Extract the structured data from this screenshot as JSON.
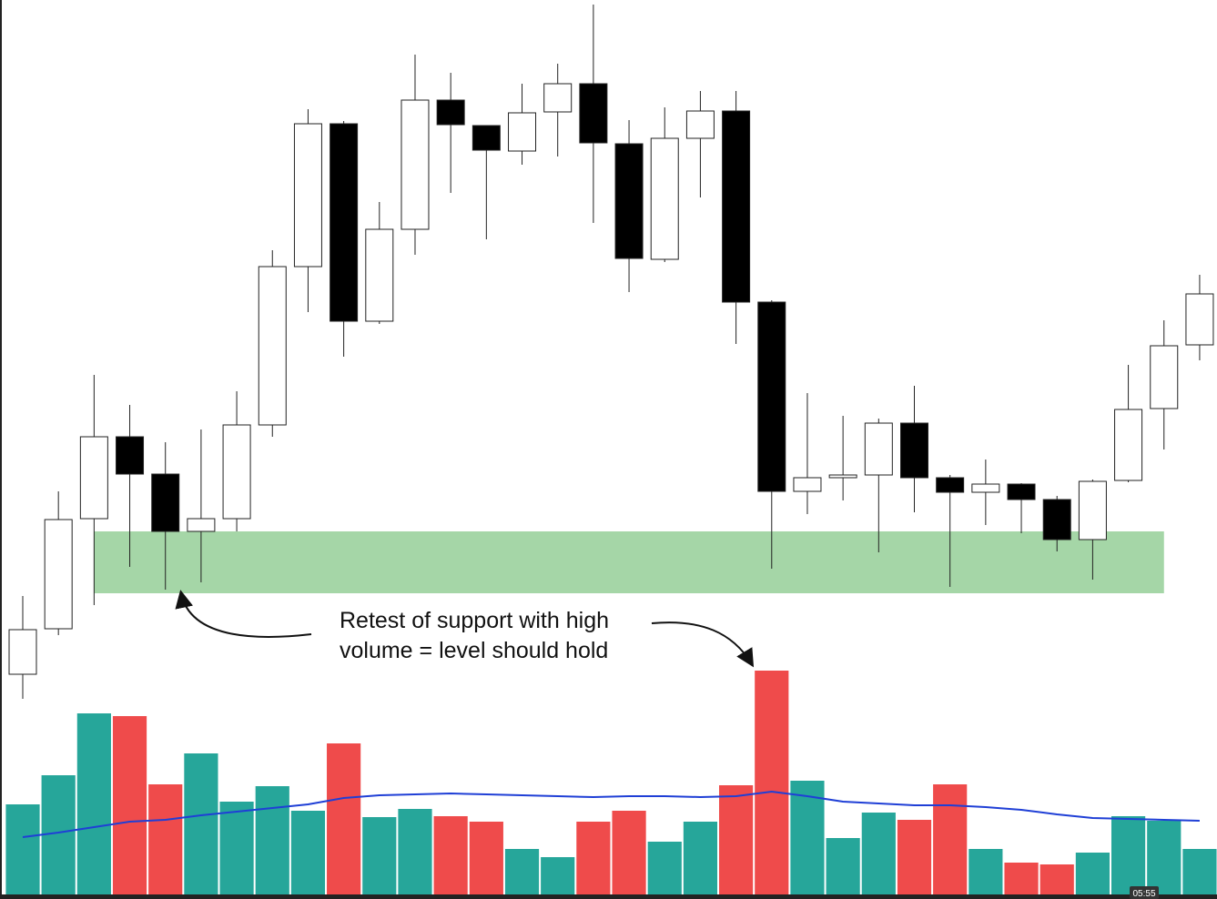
{
  "chart_data": {
    "type": "candlestick",
    "candles": {
      "open": [
        247,
        297,
        418,
        508,
        467,
        404,
        418,
        521,
        695,
        852,
        635,
        736,
        878,
        850,
        822,
        865,
        896,
        830,
        703,
        836,
        866,
        656,
        448,
        463,
        466,
        523,
        463,
        447,
        456,
        439,
        395,
        460,
        539,
        609
      ],
      "high": [
        333,
        448,
        576,
        543,
        502,
        516,
        558,
        713,
        868,
        855,
        766,
        928,
        908,
        850,
        896,
        918,
        983,
        856,
        870,
        888,
        888,
        658,
        556,
        531,
        528,
        564,
        466,
        483,
        457,
        443,
        461,
        587,
        636,
        686
      ],
      "low": [
        220,
        290,
        323,
        365,
        340,
        348,
        404,
        508,
        645,
        596,
        632,
        708,
        776,
        725,
        807,
        816,
        743,
        667,
        700,
        771,
        610,
        363,
        423,
        438,
        381,
        425,
        343,
        411,
        402,
        382,
        351,
        458,
        494,
        592
      ],
      "close": [
        296,
        417,
        508,
        467,
        404,
        418,
        521,
        695,
        852,
        635,
        736,
        878,
        851,
        823,
        864,
        896,
        831,
        704,
        836,
        866,
        656,
        448,
        463,
        466,
        523,
        463,
        447,
        456,
        439,
        395,
        459,
        538,
        608,
        665
      ]
    },
    "up_color": "#ffffff",
    "down_color": "#000000",
    "ylim": [
      0,
      988
    ],
    "volume": {
      "values": [
        99,
        131,
        199,
        196,
        121,
        155,
        102,
        119,
        92,
        166,
        85,
        94,
        86,
        80,
        50,
        41,
        80,
        92,
        58,
        80,
        120,
        246,
        125,
        62,
        90,
        82,
        121,
        50,
        35,
        33,
        46,
        86,
        81,
        50
      ],
      "up_color": "#26a69a",
      "down_color": "#ef4b4b",
      "ylim": [
        0,
        983
      ],
      "ma": {
        "values": [
          63,
          68,
          74,
          80,
          82,
          87,
          91,
          95,
          99,
          106,
          109,
          110,
          111,
          110,
          109,
          108,
          107,
          108,
          108,
          107,
          108,
          113,
          108,
          102,
          100,
          98,
          98,
          96,
          93,
          88,
          84,
          83,
          82,
          81
        ],
        "color": "#1f3fd6"
      }
    },
    "support_zone": {
      "low": 336,
      "high": 404,
      "color": "#a5d6a7"
    },
    "annotation": [
      "Retest of support with high",
      "volume = level should hold"
    ]
  },
  "timestamp": "05:55"
}
